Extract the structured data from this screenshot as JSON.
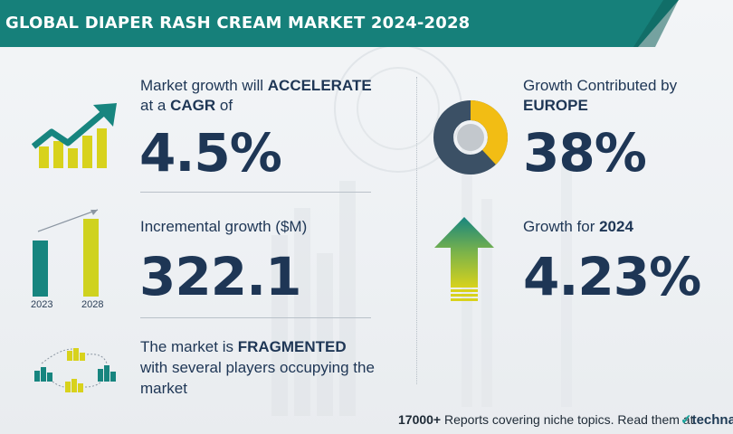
{
  "title": "GLOBAL DIAPER RASH CREAM MARKET 2024-2028",
  "cagr_block": {
    "line1_prefix": "Market growth will ",
    "line1_emph": "ACCELERATE",
    "line2_prefix": "at a ",
    "line2_emph": "CAGR",
    "line2_suffix": "  of",
    "value": "4.5%"
  },
  "incremental_block": {
    "label": "Incremental growth ($M)",
    "value": "322.1",
    "bar_years": [
      "2023",
      "2028"
    ],
    "bar_colors": [
      "#17857f",
      "#cfd21f"
    ]
  },
  "fragmented_block": {
    "line1_prefix": "The market is ",
    "line1_emph": "FRAGMENTED",
    "line2": "with several players occupying the",
    "line3": "market"
  },
  "europe_block": {
    "line1": "Growth Contributed by",
    "line2_emph": "EUROPE",
    "value": "38%",
    "donut_share": 0.38,
    "colors": {
      "share": "#f2bd14",
      "rest": "#3b5065",
      "hole": "#c3c8cd"
    }
  },
  "growth2024_block": {
    "label_prefix": "Growth for ",
    "label_emph": "2024",
    "value": "4.23%"
  },
  "footer": {
    "count": "17000+",
    "text": " Reports covering niche topics. Read them at"
  },
  "logo": {
    "mark": "✓",
    "text": "technav"
  },
  "colors": {
    "teal": "#16807a",
    "navy": "#1e3655",
    "yellow": "#d8d21c"
  }
}
